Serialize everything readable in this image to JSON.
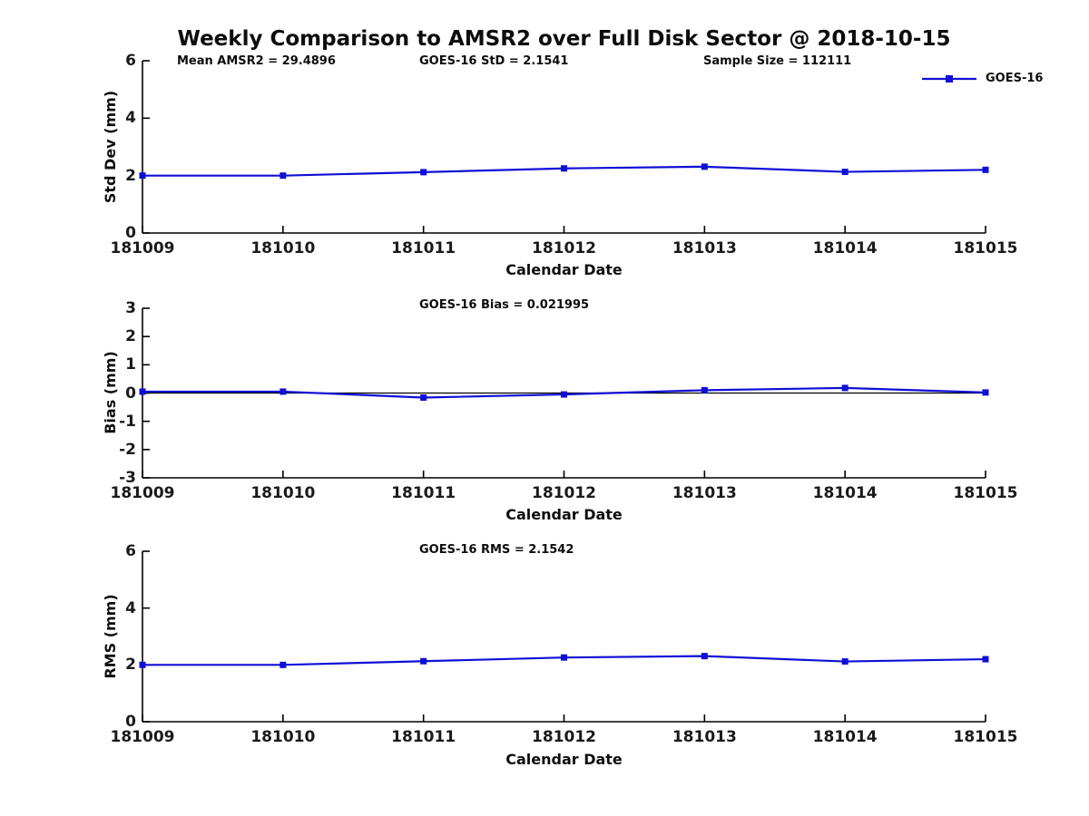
{
  "title": "Weekly Comparison to AMSR2 over Full Disk Sector @ 2018-10-15",
  "legend": {
    "label": "GOES-16"
  },
  "colors": {
    "line": "#0f0fd6",
    "axis": "#000000",
    "tick_text": "#1a1a1a",
    "zero_line": "#000000",
    "background": "#ffffff"
  },
  "chart_data": [
    {
      "type": "line",
      "title": "",
      "annotations": [
        "Mean AMSR2 = 29.4896",
        "GOES-16 StD = 2.1541",
        "Sample Size = 112111"
      ],
      "categories": [
        "181009",
        "181010",
        "181011",
        "181012",
        "181013",
        "181014",
        "181015"
      ],
      "series": [
        {
          "name": "GOES-16",
          "values": [
            2.0,
            2.0,
            2.12,
            2.25,
            2.31,
            2.13,
            2.2
          ]
        }
      ],
      "xlabel": "Calendar Date",
      "ylabel": "Std Dev (mm)",
      "ylim": [
        0,
        6
      ],
      "yticks": [
        0,
        2,
        4,
        6
      ],
      "grid": false,
      "legend_position": "top-right",
      "zero_line": false
    },
    {
      "type": "line",
      "title": "",
      "annotations": [
        "GOES-16 Bias  = 0.021995"
      ],
      "categories": [
        "181009",
        "181010",
        "181011",
        "181012",
        "181013",
        "181014",
        "181015"
      ],
      "series": [
        {
          "name": "GOES-16",
          "values": [
            0.05,
            0.05,
            -0.16,
            -0.05,
            0.1,
            0.18,
            0.02
          ]
        }
      ],
      "xlabel": "Calendar Date",
      "ylabel": "Bias (mm)",
      "ylim": [
        -3,
        3
      ],
      "yticks": [
        -3,
        -2,
        -1,
        0,
        1,
        2,
        3
      ],
      "grid": false,
      "legend_position": "none",
      "zero_line": true
    },
    {
      "type": "line",
      "title": "",
      "annotations": [
        "GOES-16 RMS = 2.1542"
      ],
      "categories": [
        "181009",
        "181010",
        "181011",
        "181012",
        "181013",
        "181014",
        "181015"
      ],
      "series": [
        {
          "name": "GOES-16",
          "values": [
            2.0,
            2.0,
            2.13,
            2.26,
            2.31,
            2.12,
            2.2
          ]
        }
      ],
      "xlabel": "Calendar Date",
      "ylabel": "RMS (mm)",
      "ylim": [
        0,
        6
      ],
      "yticks": [
        0,
        2,
        4,
        6
      ],
      "grid": false,
      "legend_position": "none",
      "zero_line": false
    }
  ]
}
